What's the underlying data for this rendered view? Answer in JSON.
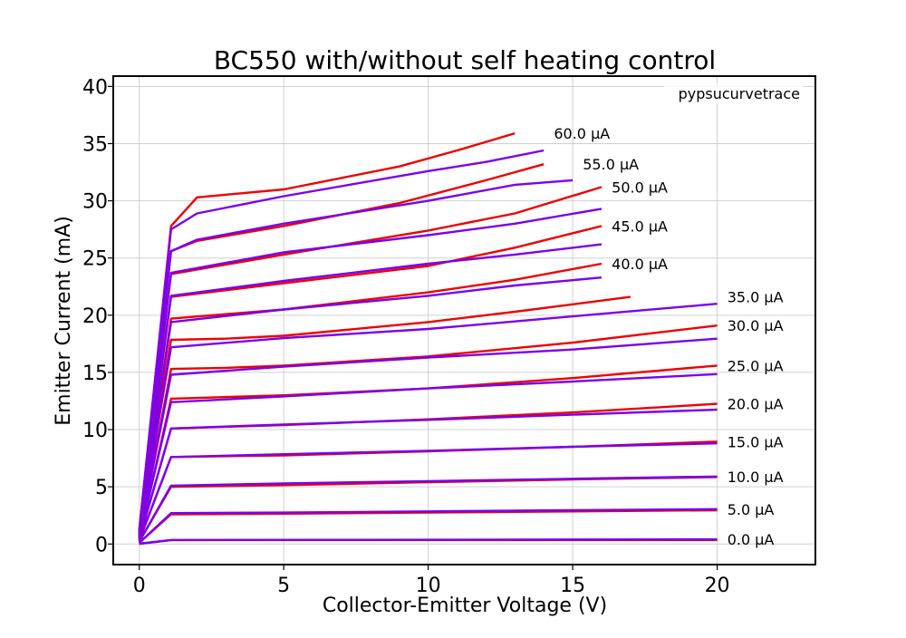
{
  "chart_data": {
    "type": "line",
    "title": "BC550 with/without self heating control",
    "xlabel": "Collector-Emitter Voltage (V)",
    "ylabel": "Emitter Current (mA)",
    "watermark": "pypsucurvetrace",
    "xlim": [
      -0.9,
      23.4
    ],
    "ylim": [
      -1.8,
      40.9
    ],
    "xticks": [
      0,
      5,
      10,
      15,
      20
    ],
    "yticks": [
      0,
      5,
      10,
      15,
      20,
      25,
      30,
      35,
      40
    ],
    "grid": true,
    "colors": {
      "with_control": "#ee0000",
      "without_control": "#7a00f0"
    },
    "curves": [
      {
        "label": "0.0 µA",
        "with_control": [
          [
            0,
            0.02
          ],
          [
            1.1,
            0.35
          ],
          [
            20,
            0.35
          ]
        ],
        "without_control": [
          [
            0,
            0.02
          ],
          [
            1.1,
            0.35
          ],
          [
            20,
            0.4
          ]
        ]
      },
      {
        "label": "5.0 µA",
        "with_control": [
          [
            0,
            0.1
          ],
          [
            1.1,
            2.6
          ],
          [
            5,
            2.65
          ],
          [
            10,
            2.75
          ],
          [
            15,
            2.85
          ],
          [
            20,
            2.95
          ]
        ],
        "without_control": [
          [
            0,
            0.1
          ],
          [
            1.1,
            2.7
          ],
          [
            5,
            2.75
          ],
          [
            10,
            2.85
          ],
          [
            15,
            2.95
          ],
          [
            20,
            3.05
          ]
        ]
      },
      {
        "label": "10.0 µA",
        "with_control": [
          [
            0,
            0.2
          ],
          [
            1.1,
            5.0
          ],
          [
            5,
            5.15
          ],
          [
            10,
            5.4
          ],
          [
            15,
            5.65
          ],
          [
            20,
            5.85
          ]
        ],
        "without_control": [
          [
            0,
            0.2
          ],
          [
            1.1,
            5.1
          ],
          [
            5,
            5.3
          ],
          [
            10,
            5.5
          ],
          [
            15,
            5.7
          ],
          [
            20,
            5.9
          ]
        ]
      },
      {
        "label": "15.0 µA",
        "with_control": [
          [
            0,
            0.3
          ],
          [
            1.1,
            7.6
          ],
          [
            5,
            7.75
          ],
          [
            10,
            8.1
          ],
          [
            15,
            8.5
          ],
          [
            20,
            8.95
          ]
        ],
        "without_control": [
          [
            0,
            0.3
          ],
          [
            1.1,
            7.6
          ],
          [
            5,
            7.85
          ],
          [
            10,
            8.15
          ],
          [
            15,
            8.5
          ],
          [
            20,
            8.8
          ]
        ]
      },
      {
        "label": "20.0 µA",
        "with_control": [
          [
            0,
            0.4
          ],
          [
            1.1,
            10.1
          ],
          [
            5,
            10.4
          ],
          [
            10,
            10.9
          ],
          [
            15,
            11.5
          ],
          [
            20,
            12.25
          ]
        ],
        "without_control": [
          [
            0,
            0.4
          ],
          [
            1.1,
            10.1
          ],
          [
            5,
            10.45
          ],
          [
            10,
            10.85
          ],
          [
            15,
            11.3
          ],
          [
            20,
            11.75
          ]
        ]
      },
      {
        "label": "25.0 µA",
        "with_control": [
          [
            0,
            0.5
          ],
          [
            1.1,
            12.7
          ],
          [
            5,
            13.0
          ],
          [
            10,
            13.6
          ],
          [
            15,
            14.5
          ],
          [
            20,
            15.6
          ]
        ],
        "without_control": [
          [
            0,
            0.5
          ],
          [
            1.1,
            12.4
          ],
          [
            5,
            12.9
          ],
          [
            10,
            13.6
          ],
          [
            15,
            14.2
          ],
          [
            20,
            14.85
          ]
        ]
      },
      {
        "label": "30.0 µA",
        "with_control": [
          [
            0,
            0.6
          ],
          [
            1.1,
            15.3
          ],
          [
            3,
            15.4
          ],
          [
            5,
            15.6
          ],
          [
            10,
            16.4
          ],
          [
            15,
            17.6
          ],
          [
            20,
            19.1
          ]
        ],
        "without_control": [
          [
            0,
            0.6
          ],
          [
            1.1,
            14.8
          ],
          [
            5,
            15.5
          ],
          [
            10,
            16.3
          ],
          [
            15,
            17.0
          ],
          [
            20,
            17.95
          ]
        ]
      },
      {
        "label": "35.0 µA",
        "with_control": [
          [
            0,
            0.7
          ],
          [
            1.1,
            17.85
          ],
          [
            3,
            17.95
          ],
          [
            5,
            18.2
          ],
          [
            10,
            19.4
          ],
          [
            13,
            20.3
          ],
          [
            17,
            21.6
          ]
        ],
        "without_control": [
          [
            0,
            0.7
          ],
          [
            1.1,
            17.2
          ],
          [
            5,
            18.0
          ],
          [
            10,
            18.8
          ],
          [
            15,
            19.9
          ],
          [
            20,
            21.0
          ]
        ]
      },
      {
        "label": "40.0 µA",
        "with_control": [
          [
            0,
            0.8
          ],
          [
            1.1,
            19.7
          ],
          [
            5,
            20.5
          ],
          [
            10,
            22.0
          ],
          [
            13,
            23.1
          ],
          [
            16,
            24.5
          ]
        ],
        "without_control": [
          [
            0,
            0.8
          ],
          [
            1.1,
            19.4
          ],
          [
            5,
            20.5
          ],
          [
            10,
            21.7
          ],
          [
            13,
            22.6
          ],
          [
            16,
            23.3
          ]
        ]
      },
      {
        "label": "45.0 µA",
        "with_control": [
          [
            0,
            0.9
          ],
          [
            1.1,
            21.6
          ],
          [
            5,
            22.8
          ],
          [
            10,
            24.3
          ],
          [
            13,
            25.9
          ],
          [
            16,
            27.8
          ]
        ],
        "without_control": [
          [
            0,
            0.9
          ],
          [
            1.1,
            21.7
          ],
          [
            5,
            23.0
          ],
          [
            10,
            24.5
          ],
          [
            13,
            25.3
          ],
          [
            16,
            26.2
          ]
        ]
      },
      {
        "label": "50.0 µA",
        "with_control": [
          [
            0,
            1.0
          ],
          [
            1.1,
            23.6
          ],
          [
            5,
            25.3
          ],
          [
            10,
            27.4
          ],
          [
            13,
            28.9
          ],
          [
            16,
            31.2
          ]
        ],
        "without_control": [
          [
            0,
            1.0
          ],
          [
            1.1,
            23.7
          ],
          [
            5,
            25.5
          ],
          [
            10,
            27.0
          ],
          [
            13,
            28.0
          ],
          [
            16,
            29.3
          ]
        ]
      },
      {
        "label": "55.0 µA",
        "with_control": [
          [
            0,
            1.1
          ],
          [
            1.1,
            25.6
          ],
          [
            2,
            26.5
          ],
          [
            5,
            27.8
          ],
          [
            9,
            29.8
          ],
          [
            12,
            31.8
          ],
          [
            14,
            33.2
          ]
        ],
        "without_control": [
          [
            0,
            1.1
          ],
          [
            1.1,
            25.6
          ],
          [
            2,
            26.6
          ],
          [
            5,
            28.0
          ],
          [
            10,
            30.0
          ],
          [
            13,
            31.4
          ],
          [
            15,
            31.8
          ]
        ]
      },
      {
        "label": "60.0 µA",
        "with_control": [
          [
            0,
            1.2
          ],
          [
            1.1,
            27.8
          ],
          [
            2,
            30.3
          ],
          [
            5,
            31.0
          ],
          [
            9,
            33.0
          ],
          [
            11,
            34.4
          ],
          [
            13,
            35.9
          ]
        ],
        "without_control": [
          [
            0,
            1.2
          ],
          [
            1.1,
            27.5
          ],
          [
            2,
            28.9
          ],
          [
            5,
            30.4
          ],
          [
            10,
            32.6
          ],
          [
            12,
            33.4
          ],
          [
            14,
            34.4
          ]
        ]
      }
    ]
  }
}
